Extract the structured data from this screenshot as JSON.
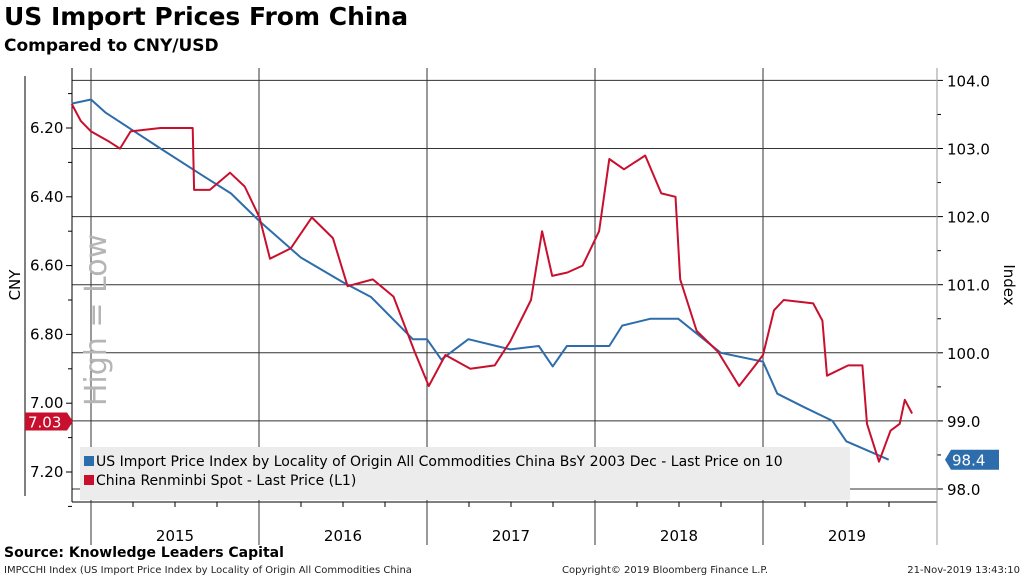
{
  "header": {
    "title": "US Import Prices From China",
    "subtitle": "Compared to CNY/USD"
  },
  "footer": {
    "source": "Source: Knowledge Leaders Capital",
    "ticker": "IMPCCHI Index (US Import Price Index by Locality of Origin All Commodities China",
    "copyright": "Copyright© 2019 Bloomberg Finance L.P.",
    "timestamp": "21-Nov-2019 13:43:10"
  },
  "chart_data": {
    "type": "line",
    "title": "US Import Prices From China",
    "subtitle": "Compared to CNY/USD",
    "x_tick_labels": [
      "2015",
      "2016",
      "2017",
      "2018",
      "2019"
    ],
    "xlim": [
      "2014-11-20",
      "2019-12-31"
    ],
    "left_axis": {
      "label": "CNY",
      "inverted": true,
      "ylim": [
        6.07,
        7.29
      ],
      "ticks": [
        "6.20",
        "6.40",
        "6.60",
        "6.80",
        "7.00",
        "7.20"
      ],
      "annotation": "High = Low",
      "last_value": "7.03"
    },
    "right_axis": {
      "label": "Index",
      "ylim": [
        97.8,
        104.2
      ],
      "ticks": [
        "104.0",
        "103.0",
        "102.0",
        "101.0",
        "100.0",
        "99.0",
        "98.0"
      ],
      "last_value": "98.4"
    },
    "grid": true,
    "legend_position": "bottom-left",
    "colors": {
      "index": "#2e6dab",
      "cny": "#c8102e"
    },
    "series": [
      {
        "name": "US Import Price Index by Locality of Origin All Commodities China BsY 2003 Dec - Last Price on 10",
        "axis": "right",
        "color": "#2e6dab",
        "points": [
          [
            "2014-11-20",
            103.66
          ],
          [
            "2015-01-01",
            103.72
          ],
          [
            "2015-02-01",
            103.53
          ],
          [
            "2015-06-01",
            103.0
          ],
          [
            "2015-09-01",
            102.6
          ],
          [
            "2015-11-01",
            102.34
          ],
          [
            "2016-01-01",
            101.94
          ],
          [
            "2016-04-01",
            101.4
          ],
          [
            "2016-07-01",
            101.04
          ],
          [
            "2016-09-01",
            100.82
          ],
          [
            "2016-12-01",
            100.2
          ],
          [
            "2017-01-01",
            100.2
          ],
          [
            "2017-02-01",
            99.9
          ],
          [
            "2017-04-01",
            100.2
          ],
          [
            "2017-07-01",
            100.05
          ],
          [
            "2017-09-01",
            100.1
          ],
          [
            "2017-10-01",
            99.8
          ],
          [
            "2017-11-01",
            100.1
          ],
          [
            "2018-02-01",
            100.1
          ],
          [
            "2018-03-01",
            100.4
          ],
          [
            "2018-05-01",
            100.5
          ],
          [
            "2018-07-01",
            100.5
          ],
          [
            "2018-10-01",
            100.0
          ],
          [
            "2019-01-01",
            99.87
          ],
          [
            "2019-02-01",
            99.4
          ],
          [
            "2019-04-01",
            99.2
          ],
          [
            "2019-06-01",
            99.0
          ],
          [
            "2019-07-01",
            98.7
          ],
          [
            "2019-10-01",
            98.43
          ]
        ]
      },
      {
        "name": "China Renminbi Spot - Last Price (L1)",
        "axis": "left",
        "color": "#c8102e",
        "points": [
          [
            "2014-11-20",
            6.13
          ],
          [
            "2014-12-10",
            6.18
          ],
          [
            "2015-01-01",
            6.21
          ],
          [
            "2015-02-10",
            6.24
          ],
          [
            "2015-03-05",
            6.26
          ],
          [
            "2015-03-28",
            6.21
          ],
          [
            "2015-06-01",
            6.2
          ],
          [
            "2015-08-10",
            6.2
          ],
          [
            "2015-08-13",
            6.38
          ],
          [
            "2015-09-16",
            6.38
          ],
          [
            "2015-10-30",
            6.33
          ],
          [
            "2015-12-01",
            6.37
          ],
          [
            "2016-01-02",
            6.46
          ],
          [
            "2016-01-25",
            6.58
          ],
          [
            "2016-03-10",
            6.55
          ],
          [
            "2016-04-25",
            6.46
          ],
          [
            "2016-06-10",
            6.52
          ],
          [
            "2016-07-12",
            6.66
          ],
          [
            "2016-09-05",
            6.64
          ],
          [
            "2016-10-20",
            6.69
          ],
          [
            "2016-12-05",
            6.85
          ],
          [
            "2017-01-05",
            6.95
          ],
          [
            "2017-02-10",
            6.86
          ],
          [
            "2017-04-05",
            6.9
          ],
          [
            "2017-05-28",
            6.89
          ],
          [
            "2017-07-01",
            6.82
          ],
          [
            "2017-08-15",
            6.7
          ],
          [
            "2017-09-08",
            6.5
          ],
          [
            "2017-09-30",
            6.63
          ],
          [
            "2017-11-02",
            6.62
          ],
          [
            "2017-12-05",
            6.6
          ],
          [
            "2018-01-10",
            6.5
          ],
          [
            "2018-02-01",
            6.29
          ],
          [
            "2018-03-05",
            6.32
          ],
          [
            "2018-04-20",
            6.28
          ],
          [
            "2018-05-25",
            6.39
          ],
          [
            "2018-06-25",
            6.4
          ],
          [
            "2018-07-05",
            6.64
          ],
          [
            "2018-08-10",
            6.79
          ],
          [
            "2018-09-25",
            6.85
          ],
          [
            "2018-11-10",
            6.95
          ],
          [
            "2018-12-15",
            6.89
          ],
          [
            "2019-01-01",
            6.86
          ],
          [
            "2019-01-25",
            6.73
          ],
          [
            "2019-02-15",
            6.7
          ],
          [
            "2019-04-20",
            6.71
          ],
          [
            "2019-05-10",
            6.76
          ],
          [
            "2019-05-20",
            6.92
          ],
          [
            "2019-07-05",
            6.89
          ],
          [
            "2019-08-05",
            6.89
          ],
          [
            "2019-08-15",
            7.06
          ],
          [
            "2019-09-10",
            7.17
          ],
          [
            "2019-10-05",
            7.08
          ],
          [
            "2019-10-25",
            7.06
          ],
          [
            "2019-11-05",
            6.99
          ],
          [
            "2019-11-21",
            7.03
          ]
        ]
      }
    ]
  }
}
